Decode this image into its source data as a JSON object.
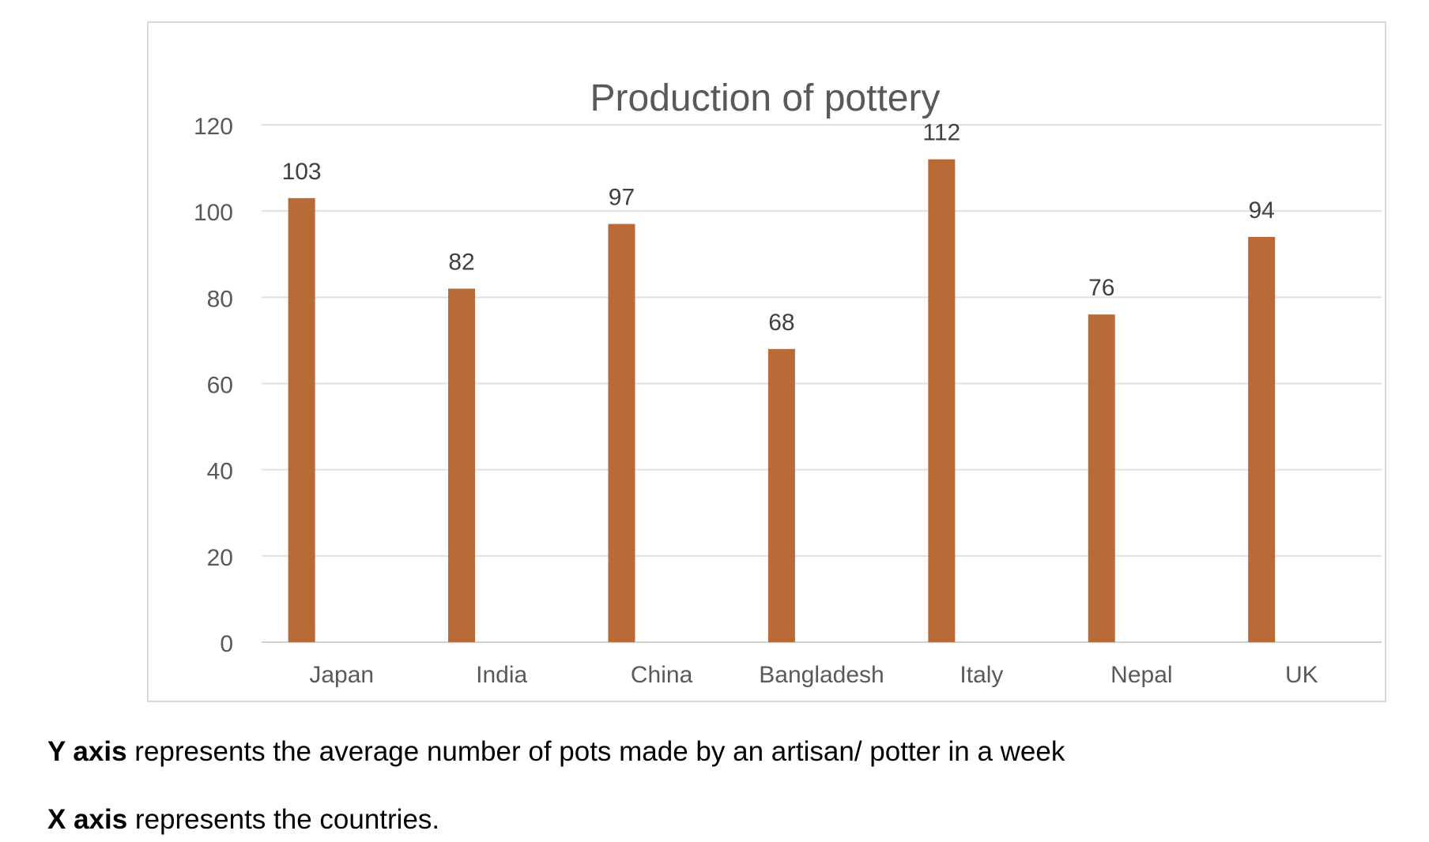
{
  "chart_data": {
    "type": "bar",
    "title": "Production of pottery",
    "categories": [
      "Japan",
      "India",
      "China",
      "Bangladesh",
      "Italy",
      "Nepal",
      "UK"
    ],
    "values": [
      103,
      82,
      97,
      68,
      112,
      76,
      94
    ],
    "data_labels": [
      "103",
      "82",
      "97",
      "68",
      "112",
      "76",
      "94"
    ],
    "y_ticks": [
      0,
      20,
      40,
      60,
      80,
      100,
      120
    ],
    "ylim": [
      0,
      120
    ],
    "grid": true,
    "legend": "none",
    "bar_color": "#b86b37"
  },
  "captions": {
    "y_axis_label": "Y axis",
    "y_axis_text": " represents the average number of pots made by an artisan/ potter in a week",
    "x_axis_label": "X axis",
    "x_axis_text": " represents the countries."
  }
}
